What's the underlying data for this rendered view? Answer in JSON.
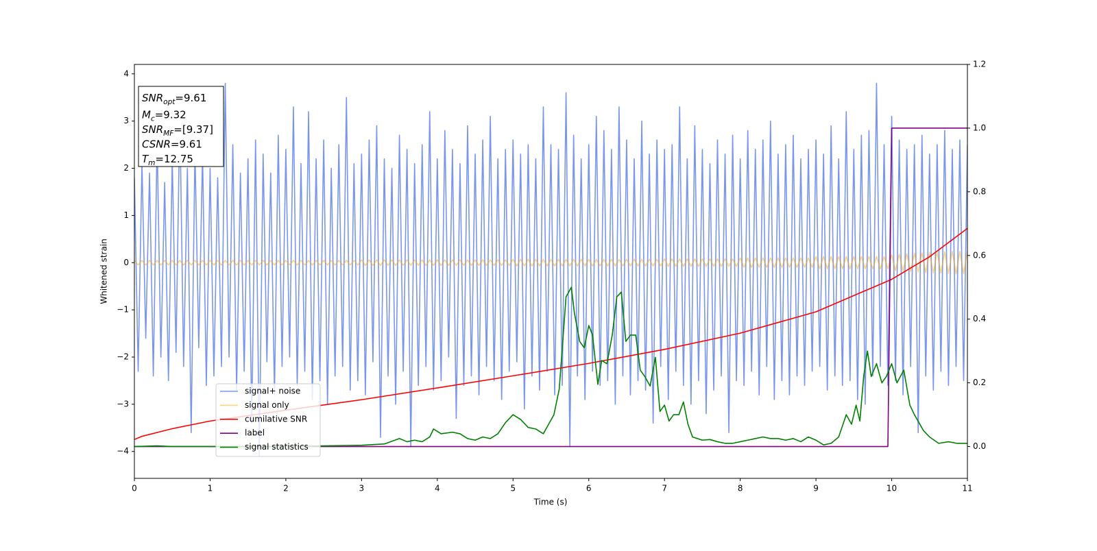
{
  "chart_data": {
    "type": "line",
    "xlabel": "Time (s)",
    "ylabel": "Whitened strain",
    "xlim": [
      0,
      11
    ],
    "xticks": [
      0,
      1,
      2,
      3,
      4,
      5,
      6,
      7,
      8,
      9,
      10,
      11
    ],
    "ylim": [
      -4.57,
      4.2
    ],
    "yticks": [
      {
        "value": -4,
        "label": "−4"
      },
      {
        "value": -3,
        "label": "−3"
      },
      {
        "value": -2,
        "label": "−2"
      },
      {
        "value": -1,
        "label": "−1"
      },
      0,
      1,
      2,
      3,
      4
    ],
    "y2lim": [
      -0.1,
      1.2
    ],
    "y2ticks": [
      {
        "value": 0,
        "label": "0.0"
      },
      {
        "value": 0.2,
        "label": "0.2"
      },
      {
        "value": 0.4,
        "label": "0.4"
      },
      {
        "value": 0.6,
        "label": "0.6"
      },
      {
        "value": 0.8,
        "label": "0.8"
      },
      {
        "value": 1,
        "label": "1.0"
      },
      {
        "value": 1.2,
        "label": "1.2"
      }
    ],
    "annotations": [
      {
        "symbol": "SNR",
        "subscript": "opt",
        "text": "=9.61"
      },
      {
        "symbol": "M",
        "subscript": "c",
        "text": "=9.32"
      },
      {
        "symbol": "SNR",
        "subscript": "MF",
        "text": "=[9.37]"
      },
      {
        "symbol": "CSNR",
        "text": "=9.61"
      },
      {
        "symbol": "T",
        "subscript": "m",
        "text": "=12.75"
      }
    ],
    "x": [
      0,
      0.05,
      0.1,
      0.15,
      0.2,
      0.25,
      0.3,
      0.35,
      0.4,
      0.45,
      0.5,
      0.55,
      0.6,
      0.65,
      0.7,
      0.75,
      0.8,
      0.85,
      0.9,
      0.95,
      1,
      1.05,
      1.1,
      1.15,
      1.2,
      1.25,
      1.3,
      1.35,
      1.4,
      1.45,
      1.5,
      1.55,
      1.6,
      1.65,
      1.7,
      1.75,
      1.8,
      1.85,
      1.9,
      1.95,
      2,
      2.05,
      2.1,
      2.15,
      2.2,
      2.25,
      2.3,
      2.35,
      2.4,
      2.45,
      2.5,
      2.55,
      2.6,
      2.65,
      2.7,
      2.75,
      2.8,
      2.85,
      2.9,
      2.95,
      3,
      3.05,
      3.1,
      3.15,
      3.2,
      3.25,
      3.3,
      3.35,
      3.4,
      3.45,
      3.5,
      3.55,
      3.6,
      3.65,
      3.7,
      3.75,
      3.8,
      3.85,
      3.9,
      3.95,
      4,
      4.05,
      4.1,
      4.15,
      4.2,
      4.25,
      4.3,
      4.35,
      4.4,
      4.45,
      4.5,
      4.55,
      4.6,
      4.65,
      4.7,
      4.75,
      4.8,
      4.85,
      4.9,
      4.95,
      5,
      5.05,
      5.1,
      5.15,
      5.2,
      5.25,
      5.3,
      5.35,
      5.4,
      5.45,
      5.5,
      5.55,
      5.6,
      5.65,
      5.7,
      5.75,
      5.8,
      5.85,
      5.9,
      5.95,
      6,
      6.05,
      6.1,
      6.15,
      6.2,
      6.25,
      6.3,
      6.35,
      6.4,
      6.45,
      6.5,
      6.55,
      6.6,
      6.65,
      6.7,
      6.75,
      6.8,
      6.85,
      6.9,
      6.95,
      7,
      7.05,
      7.1,
      7.15,
      7.2,
      7.25,
      7.3,
      7.35,
      7.4,
      7.45,
      7.5,
      7.55,
      7.6,
      7.65,
      7.7,
      7.75,
      7.8,
      7.85,
      7.9,
      7.95,
      8,
      8.05,
      8.1,
      8.15,
      8.2,
      8.25,
      8.3,
      8.35,
      8.4,
      8.45,
      8.5,
      8.55,
      8.6,
      8.65,
      8.7,
      8.75,
      8.8,
      8.85,
      8.9,
      8.95,
      9,
      9.05,
      9.1,
      9.15,
      9.2,
      9.25,
      9.3,
      9.35,
      9.4,
      9.45,
      9.5,
      9.55,
      9.6,
      9.65,
      9.7,
      9.75,
      9.8,
      9.85,
      9.9,
      9.95,
      10,
      10.05,
      10.1,
      10.15,
      10.2,
      10.25,
      10.3,
      10.35,
      10.4,
      10.45,
      10.5,
      10.55,
      10.6,
      10.65,
      10.7,
      10.75,
      10.8,
      10.85,
      10.9,
      10.95,
      11
    ],
    "series": [
      {
        "name": "signal+ noise",
        "color": "#4169e1",
        "alpha": 0.7,
        "values": [
          1.8,
          -2.3,
          2.1,
          -1.6,
          1.9,
          -2.4,
          2.6,
          -2.0,
          1.7,
          -2.5,
          2.2,
          -1.9,
          3.2,
          -2.2,
          2.0,
          -3.6,
          2.4,
          -1.8,
          2.3,
          -2.6,
          2.0,
          -2.4,
          1.8,
          -2.2,
          3.8,
          -2.0,
          2.5,
          -2.7,
          1.9,
          -2.3,
          2.2,
          -3.4,
          2.6,
          -4.1,
          2.3,
          -2.1,
          1.9,
          -2.8,
          2.7,
          -2.2,
          2.4,
          -2.0,
          3.3,
          -2.6,
          2.1,
          -2.3,
          3.2,
          -2.9,
          2.2,
          -2.5,
          2.6,
          -3.0,
          2.0,
          -2.4,
          2.5,
          -2.2,
          3.5,
          -2.7,
          2.1,
          -2.5,
          2.3,
          -2.8,
          2.6,
          -2.1,
          2.9,
          -3.7,
          2.2,
          -2.4,
          2.0,
          -3.0,
          2.7,
          -2.3,
          2.4,
          -3.9,
          2.1,
          -2.6,
          2.5,
          -2.2,
          3.2,
          -2.7,
          2.2,
          -2.5,
          2.8,
          -2.0,
          2.4,
          -3.3,
          2.1,
          -2.6,
          2.9,
          -2.4,
          2.3,
          -2.8,
          2.6,
          -2.2,
          3.1,
          -2.5,
          2.2,
          -2.9,
          2.4,
          -2.3,
          2.6,
          -2.1,
          2.3,
          -3.1,
          2.5,
          -2.4,
          2.2,
          -2.7,
          3.3,
          -2.3,
          2.5,
          -2.8,
          2.4,
          -2.6,
          3.6,
          -3.9,
          2.7,
          -2.4,
          2.2,
          -2.9,
          2.5,
          -2.3,
          3.1,
          -2.6,
          2.8,
          -2.5,
          2.4,
          -3.0,
          3.3,
          -2.4,
          2.6,
          -2.8,
          2.2,
          -2.5,
          3.0,
          -2.7,
          2.3,
          -3.4,
          2.6,
          -2.2,
          2.4,
          -2.9,
          2.5,
          -2.3,
          3.3,
          -2.6,
          2.2,
          -3.0,
          2.9,
          -2.5,
          2.4,
          -3.2,
          2.1,
          -2.7,
          2.6,
          -2.4,
          2.3,
          -3.6,
          2.7,
          -2.5,
          2.2,
          -2.6,
          2.8,
          -2.3,
          2.4,
          -2.8,
          2.6,
          -2.2,
          3.0,
          -2.9,
          2.3,
          -2.5,
          2.5,
          -2.8,
          2.7,
          -2.4,
          2.2,
          -2.6,
          2.4,
          -2.3,
          2.6,
          -2.2,
          2.3,
          -2.7,
          2.9,
          -2.4,
          2.2,
          -2.6,
          3.2,
          -2.5,
          2.4,
          -2.9,
          2.7,
          -3.0,
          2.8,
          -2.4,
          3.8,
          -2.2,
          2.5,
          -2.6,
          3.1,
          -2.5,
          2.6,
          -2.8,
          2.4,
          -2.2,
          2.5,
          -3.6,
          2.7,
          -2.4,
          2.3,
          -2.7,
          2.5,
          -2.3,
          2.8,
          -2.6,
          2.4,
          -2.2,
          2.6,
          -2.5,
          2.5
        ]
      },
      {
        "name": "signal only",
        "color": "#ffa500",
        "alpha": 0.5,
        "values": [
          0.05,
          -0.05,
          0.05,
          -0.05,
          0.05,
          -0.05,
          0.05,
          -0.05,
          0.05,
          -0.05,
          0.05,
          -0.05,
          0.05,
          -0.05,
          0.05,
          -0.05,
          0.05,
          -0.05,
          0.05,
          -0.05,
          0.05,
          -0.05,
          0.05,
          -0.05,
          0.05,
          -0.05,
          0.05,
          -0.05,
          0.05,
          -0.05,
          0.05,
          -0.05,
          0.05,
          -0.05,
          0.05,
          -0.05,
          0.05,
          -0.05,
          0.05,
          -0.05,
          0.05,
          -0.05,
          0.05,
          -0.05,
          0.05,
          -0.05,
          0.05,
          -0.05,
          0.05,
          -0.05,
          0.05,
          -0.05,
          0.05,
          -0.05,
          0.05,
          -0.05,
          0.05,
          -0.05,
          0.05,
          -0.05,
          0.06,
          -0.06,
          0.06,
          -0.06,
          0.06,
          -0.06,
          0.06,
          -0.06,
          0.06,
          -0.06,
          0.06,
          -0.06,
          0.06,
          -0.06,
          0.06,
          -0.06,
          0.06,
          -0.06,
          0.06,
          -0.06,
          0.06,
          -0.06,
          0.06,
          -0.06,
          0.06,
          -0.06,
          0.06,
          -0.06,
          0.06,
          -0.06,
          0.06,
          -0.06,
          0.06,
          -0.06,
          0.06,
          -0.06,
          0.06,
          -0.06,
          0.06,
          -0.06,
          0.07,
          -0.07,
          0.07,
          -0.07,
          0.07,
          -0.07,
          0.07,
          -0.07,
          0.07,
          -0.07,
          0.07,
          -0.07,
          0.07,
          -0.07,
          0.07,
          -0.07,
          0.07,
          -0.07,
          0.07,
          -0.07,
          0.07,
          -0.07,
          0.07,
          -0.07,
          0.07,
          -0.07,
          0.07,
          -0.07,
          0.07,
          -0.07,
          0.07,
          -0.07,
          0.07,
          -0.07,
          0.07,
          -0.07,
          0.07,
          -0.07,
          0.07,
          -0.07,
          0.08,
          -0.08,
          0.08,
          -0.08,
          0.08,
          -0.08,
          0.08,
          -0.08,
          0.08,
          -0.08,
          0.08,
          -0.08,
          0.08,
          -0.08,
          0.08,
          -0.08,
          0.08,
          -0.08,
          0.08,
          -0.08,
          0.1,
          -0.1,
          0.1,
          -0.1,
          0.1,
          -0.1,
          0.1,
          -0.1,
          0.1,
          -0.1,
          0.1,
          -0.1,
          0.1,
          -0.1,
          0.1,
          -0.1,
          0.1,
          -0.1,
          0.1,
          -0.1,
          0.13,
          -0.13,
          0.13,
          -0.13,
          0.13,
          -0.13,
          0.13,
          -0.13,
          0.13,
          -0.13,
          0.13,
          -0.13,
          0.13,
          -0.13,
          0.13,
          -0.13,
          0.13,
          -0.13,
          0.13,
          -0.13,
          0.17,
          -0.17,
          0.18,
          -0.18,
          0.19,
          -0.19,
          0.2,
          -0.2,
          0.21,
          -0.21,
          0.22,
          -0.22,
          0.22,
          -0.22,
          0.23,
          -0.23,
          0.24,
          -0.24,
          0.24,
          -0.24,
          0.25
        ]
      },
      {
        "name": "cumilative SNR",
        "color": "#ff0000",
        "axis": "y2",
        "x": [
          0,
          0.1,
          0.5,
          1,
          2,
          3,
          4,
          5,
          6,
          7,
          8,
          9,
          10,
          10.5,
          11
        ],
        "values": [
          0.022,
          0.032,
          0.056,
          0.08,
          0.114,
          0.147,
          0.184,
          0.222,
          0.261,
          0.305,
          0.356,
          0.423,
          0.525,
          0.596,
          0.685
        ]
      },
      {
        "name": "label",
        "color": "#800080",
        "axis": "y2",
        "x": [
          0,
          9.95,
          10,
          11
        ],
        "values": [
          0,
          0,
          1,
          1
        ]
      },
      {
        "name": "signal statistics",
        "color": "#008000",
        "axis": "y2",
        "x": [
          0,
          0.3,
          0.5,
          1,
          1.5,
          2,
          2.5,
          3,
          3.3,
          3.5,
          3.6,
          3.7,
          3.8,
          3.9,
          3.95,
          4.05,
          4.2,
          4.3,
          4.4,
          4.5,
          4.6,
          4.7,
          4.8,
          4.9,
          5,
          5.1,
          5.2,
          5.3,
          5.4,
          5.47,
          5.54,
          5.61,
          5.7,
          5.77,
          5.81,
          5.88,
          5.94,
          6,
          6.05,
          6.12,
          6.17,
          6.24,
          6.31,
          6.37,
          6.43,
          6.49,
          6.55,
          6.62,
          6.68,
          6.74,
          6.81,
          6.88,
          6.94,
          7,
          7.06,
          7.12,
          7.19,
          7.25,
          7.31,
          7.37,
          7.5,
          7.6,
          7.7,
          7.8,
          7.9,
          8,
          8.1,
          8.2,
          8.3,
          8.4,
          8.5,
          8.6,
          8.7,
          8.8,
          8.9,
          9,
          9.1,
          9.2,
          9.3,
          9.4,
          9.47,
          9.53,
          9.58,
          9.63,
          9.68,
          9.73,
          9.8,
          9.87,
          9.93,
          10,
          10.07,
          10.16,
          10.24,
          10.3,
          10.42,
          10.5,
          10.62,
          10.75,
          10.86,
          11
        ],
        "values": [
          0,
          0.002,
          0,
          0,
          0,
          0,
          0.002,
          0.004,
          0.008,
          0.025,
          0.015,
          0.02,
          0.015,
          0.03,
          0.055,
          0.04,
          0.045,
          0.04,
          0.025,
          0.02,
          0.03,
          0.025,
          0.04,
          0.075,
          0.1,
          0.085,
          0.06,
          0.055,
          0.04,
          0.07,
          0.1,
          0.18,
          0.47,
          0.5,
          0.42,
          0.33,
          0.31,
          0.38,
          0.35,
          0.195,
          0.27,
          0.26,
          0.35,
          0.47,
          0.485,
          0.33,
          0.35,
          0.35,
          0.24,
          0.22,
          0.19,
          0.28,
          0.11,
          0.13,
          0.08,
          0.1,
          0.1,
          0.14,
          0.07,
          0.03,
          0.02,
          0.022,
          0.015,
          0.01,
          0.01,
          0.015,
          0.02,
          0.025,
          0.03,
          0.025,
          0.025,
          0.02,
          0.025,
          0.015,
          0.03,
          0.02,
          0.005,
          0.01,
          0.03,
          0.1,
          0.07,
          0.13,
          0.08,
          0.22,
          0.3,
          0.22,
          0.26,
          0.2,
          0.22,
          0.26,
          0.2,
          0.24,
          0.13,
          0.1,
          0.05,
          0.03,
          0.01,
          0.015,
          0.01,
          0.01
        ]
      }
    ]
  }
}
